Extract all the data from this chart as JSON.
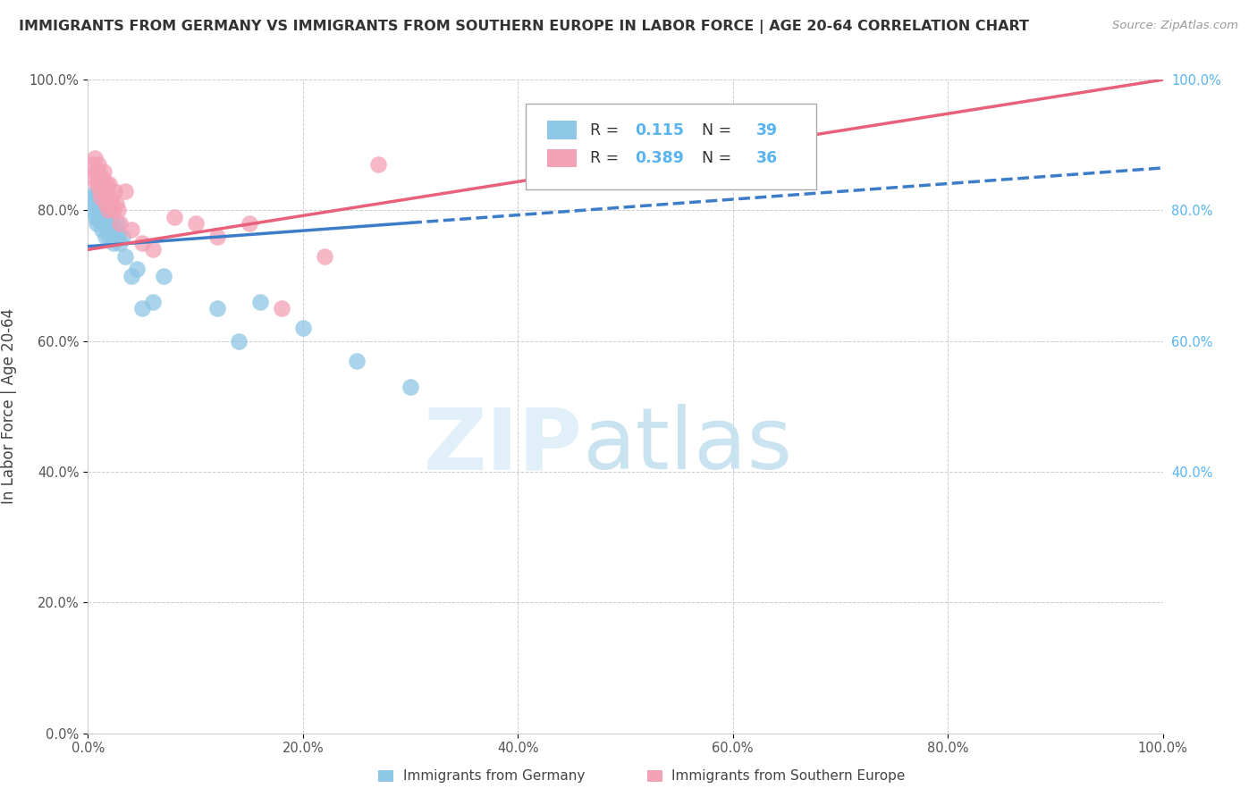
{
  "title": "IMMIGRANTS FROM GERMANY VS IMMIGRANTS FROM SOUTHERN EUROPE IN LABOR FORCE | AGE 20-64 CORRELATION CHART",
  "source": "Source: ZipAtlas.com",
  "ylabel": "In Labor Force | Age 20-64",
  "legend_label_1": "Immigrants from Germany",
  "legend_label_2": "Immigrants from Southern Europe",
  "R1": 0.115,
  "N1": 39,
  "R2": 0.389,
  "N2": 36,
  "color_blue": "#8ec6e6",
  "color_pink": "#f4a0b5",
  "color_blue_line": "#3d7cc9",
  "color_pink_line": "#e8607a",
  "blue_x": [
    0.005,
    0.005,
    0.005,
    0.007,
    0.007,
    0.008,
    0.008,
    0.01,
    0.01,
    0.01,
    0.012,
    0.012,
    0.013,
    0.015,
    0.015,
    0.016,
    0.017,
    0.018,
    0.02,
    0.02,
    0.022,
    0.024,
    0.025,
    0.027,
    0.028,
    0.03,
    0.032,
    0.035,
    0.04,
    0.045,
    0.05,
    0.06,
    0.07,
    0.12,
    0.14,
    0.16,
    0.2,
    0.25,
    0.3
  ],
  "blue_y": [
    0.82,
    0.81,
    0.8,
    0.83,
    0.79,
    0.825,
    0.78,
    0.82,
    0.8,
    0.785,
    0.815,
    0.79,
    0.77,
    0.8,
    0.78,
    0.76,
    0.81,
    0.775,
    0.8,
    0.76,
    0.78,
    0.75,
    0.77,
    0.78,
    0.76,
    0.75,
    0.76,
    0.73,
    0.7,
    0.71,
    0.65,
    0.66,
    0.7,
    0.65,
    0.6,
    0.66,
    0.62,
    0.57,
    0.53
  ],
  "pink_x": [
    0.005,
    0.005,
    0.006,
    0.007,
    0.008,
    0.009,
    0.01,
    0.01,
    0.011,
    0.012,
    0.013,
    0.014,
    0.015,
    0.016,
    0.017,
    0.018,
    0.019,
    0.02,
    0.021,
    0.022,
    0.024,
    0.025,
    0.026,
    0.028,
    0.03,
    0.035,
    0.04,
    0.05,
    0.06,
    0.08,
    0.1,
    0.12,
    0.15,
    0.18,
    0.22,
    0.27
  ],
  "pink_y": [
    0.87,
    0.85,
    0.88,
    0.86,
    0.84,
    0.86,
    0.87,
    0.845,
    0.83,
    0.82,
    0.85,
    0.84,
    0.86,
    0.81,
    0.84,
    0.82,
    0.8,
    0.84,
    0.82,
    0.81,
    0.8,
    0.83,
    0.81,
    0.8,
    0.78,
    0.83,
    0.77,
    0.75,
    0.74,
    0.79,
    0.78,
    0.76,
    0.78,
    0.65,
    0.73,
    0.87
  ],
  "xmin": 0.0,
  "xmax": 1.0,
  "ymin": 0.0,
  "ymax": 1.0,
  "blue_line_x0": 0.0,
  "blue_line_y0": 0.745,
  "blue_line_x1": 1.0,
  "blue_line_y1": 0.865,
  "blue_line_solid_end": 0.3,
  "pink_line_x0": 0.0,
  "pink_line_y0": 0.74,
  "pink_line_x1": 1.0,
  "pink_line_y1": 1.0
}
